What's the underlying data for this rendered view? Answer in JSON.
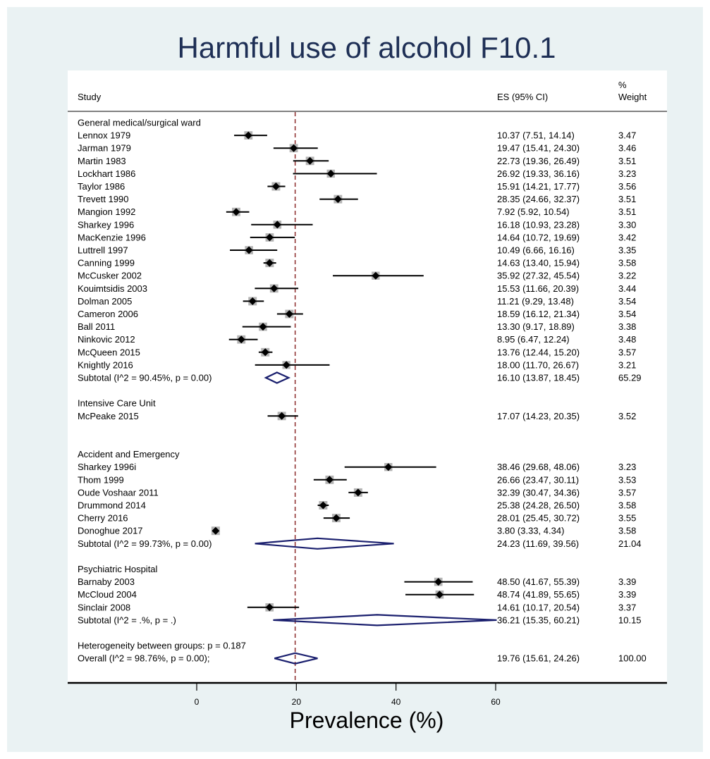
{
  "chart_data": {
    "type": "forest",
    "title": "Harmful use of alcohol F10.1",
    "xlabel": "Prevalence (%)",
    "xticks": [
      0,
      20,
      40,
      60
    ],
    "xlim": [
      0,
      60
    ],
    "reference_line": 19.76,
    "headers": {
      "study": "Study",
      "es": "ES (95% CI)",
      "weight_line1": "%",
      "weight_line2": "Weight"
    },
    "rows": [
      {
        "kind": "group",
        "label": "General medical/surgical ward"
      },
      {
        "kind": "study",
        "label": "Lennox 1979",
        "es": 10.37,
        "lo": 7.51,
        "hi": 14.14,
        "es_text": "10.37 (7.51, 14.14)",
        "weight": "3.47"
      },
      {
        "kind": "study",
        "label": "Jarman 1979",
        "es": 19.47,
        "lo": 15.41,
        "hi": 24.3,
        "es_text": "19.47 (15.41, 24.30)",
        "weight": "3.46"
      },
      {
        "kind": "study",
        "label": "Martin 1983",
        "es": 22.73,
        "lo": 19.36,
        "hi": 26.49,
        "es_text": "22.73 (19.36, 26.49)",
        "weight": "3.51"
      },
      {
        "kind": "study",
        "label": "Lockhart 1986",
        "es": 26.92,
        "lo": 19.33,
        "hi": 36.16,
        "es_text": "26.92 (19.33, 36.16)",
        "weight": "3.23"
      },
      {
        "kind": "study",
        "label": "Taylor 1986",
        "es": 15.91,
        "lo": 14.21,
        "hi": 17.77,
        "es_text": "15.91 (14.21, 17.77)",
        "weight": "3.56"
      },
      {
        "kind": "study",
        "label": "Trevett 1990",
        "es": 28.35,
        "lo": 24.66,
        "hi": 32.37,
        "es_text": "28.35 (24.66, 32.37)",
        "weight": "3.51"
      },
      {
        "kind": "study",
        "label": "Mangion 1992",
        "es": 7.92,
        "lo": 5.92,
        "hi": 10.54,
        "es_text": "7.92 (5.92, 10.54)",
        "weight": "3.51"
      },
      {
        "kind": "study",
        "label": "Sharkey 1996",
        "es": 16.18,
        "lo": 10.93,
        "hi": 23.28,
        "es_text": "16.18 (10.93, 23.28)",
        "weight": "3.30"
      },
      {
        "kind": "study",
        "label": "MacKenzie 1996",
        "es": 14.64,
        "lo": 10.72,
        "hi": 19.69,
        "es_text": "14.64 (10.72, 19.69)",
        "weight": "3.42"
      },
      {
        "kind": "study",
        "label": "Luttrell 1997",
        "es": 10.49,
        "lo": 6.66,
        "hi": 16.16,
        "es_text": "10.49 (6.66, 16.16)",
        "weight": "3.35"
      },
      {
        "kind": "study",
        "label": "Canning 1999",
        "es": 14.63,
        "lo": 13.4,
        "hi": 15.94,
        "es_text": "14.63 (13.40, 15.94)",
        "weight": "3.58"
      },
      {
        "kind": "study",
        "label": "McCusker 2002",
        "es": 35.92,
        "lo": 27.32,
        "hi": 45.54,
        "es_text": "35.92 (27.32, 45.54)",
        "weight": "3.22"
      },
      {
        "kind": "study",
        "label": "Kouimtsidis 2003",
        "es": 15.53,
        "lo": 11.66,
        "hi": 20.39,
        "es_text": "15.53 (11.66, 20.39)",
        "weight": "3.44"
      },
      {
        "kind": "study",
        "label": "Dolman 2005",
        "es": 11.21,
        "lo": 9.29,
        "hi": 13.48,
        "es_text": "11.21 (9.29, 13.48)",
        "weight": "3.54"
      },
      {
        "kind": "study",
        "label": "Cameron 2006",
        "es": 18.59,
        "lo": 16.12,
        "hi": 21.34,
        "es_text": "18.59 (16.12, 21.34)",
        "weight": "3.54"
      },
      {
        "kind": "study",
        "label": "Ball 2011",
        "es": 13.3,
        "lo": 9.17,
        "hi": 18.89,
        "es_text": "13.30 (9.17, 18.89)",
        "weight": "3.38"
      },
      {
        "kind": "study",
        "label": "Ninkovic 2012",
        "es": 8.95,
        "lo": 6.47,
        "hi": 12.24,
        "es_text": "8.95 (6.47, 12.24)",
        "weight": "3.48"
      },
      {
        "kind": "study",
        "label": "McQueen 2015",
        "es": 13.76,
        "lo": 12.44,
        "hi": 15.2,
        "es_text": "13.76 (12.44, 15.20)",
        "weight": "3.57"
      },
      {
        "kind": "study",
        "label": "Knightly 2016",
        "es": 18.0,
        "lo": 11.7,
        "hi": 26.67,
        "es_text": "18.00 (11.70, 26.67)",
        "weight": "3.21"
      },
      {
        "kind": "subtotal",
        "label": "Subtotal  (I^2 = 90.45%, p = 0.00)",
        "es": 16.1,
        "lo": 13.87,
        "hi": 18.45,
        "es_text": "16.10 (13.87, 18.45)",
        "weight": "65.29"
      },
      {
        "kind": "blank"
      },
      {
        "kind": "group",
        "label": "Intensive Care Unit"
      },
      {
        "kind": "study",
        "label": "McPeake 2015",
        "es": 17.07,
        "lo": 14.23,
        "hi": 20.35,
        "es_text": "17.07 (14.23, 20.35)",
        "weight": "3.52"
      },
      {
        "kind": "blank"
      },
      {
        "kind": "blank"
      },
      {
        "kind": "group",
        "label": "Accident and Emergency"
      },
      {
        "kind": "study",
        "label": "Sharkey 1996i",
        "es": 38.46,
        "lo": 29.68,
        "hi": 48.06,
        "es_text": "38.46 (29.68, 48.06)",
        "weight": "3.23"
      },
      {
        "kind": "study",
        "label": "Thom 1999",
        "es": 26.66,
        "lo": 23.47,
        "hi": 30.11,
        "es_text": "26.66 (23.47, 30.11)",
        "weight": "3.53"
      },
      {
        "kind": "study",
        "label": "Oude Voshaar 2011",
        "es": 32.39,
        "lo": 30.47,
        "hi": 34.36,
        "es_text": "32.39 (30.47, 34.36)",
        "weight": "3.57"
      },
      {
        "kind": "study",
        "label": "Drummond 2014",
        "es": 25.38,
        "lo": 24.28,
        "hi": 26.5,
        "es_text": "25.38 (24.28, 26.50)",
        "weight": "3.58"
      },
      {
        "kind": "study",
        "label": "Cherry 2016",
        "es": 28.01,
        "lo": 25.45,
        "hi": 30.72,
        "es_text": "28.01 (25.45, 30.72)",
        "weight": "3.55"
      },
      {
        "kind": "study",
        "label": "Donoghue 2017",
        "es": 3.8,
        "lo": 3.33,
        "hi": 4.34,
        "es_text": "3.80 (3.33, 4.34)",
        "weight": "3.58"
      },
      {
        "kind": "subtotal",
        "label": "Subtotal  (I^2 = 99.73%, p = 0.00)",
        "es": 24.23,
        "lo": 11.69,
        "hi": 39.56,
        "es_text": "24.23 (11.69, 39.56)",
        "weight": "21.04"
      },
      {
        "kind": "blank"
      },
      {
        "kind": "group",
        "label": "Psychiatric Hospital"
      },
      {
        "kind": "study",
        "label": "Barnaby 2003",
        "es": 48.5,
        "lo": 41.67,
        "hi": 55.39,
        "es_text": "48.50 (41.67, 55.39)",
        "weight": "3.39"
      },
      {
        "kind": "study",
        "label": "McCloud 2004",
        "es": 48.74,
        "lo": 41.89,
        "hi": 55.65,
        "es_text": "48.74 (41.89, 55.65)",
        "weight": "3.39"
      },
      {
        "kind": "study",
        "label": "Sinclair 2008",
        "es": 14.61,
        "lo": 10.17,
        "hi": 20.54,
        "es_text": "14.61 (10.17, 20.54)",
        "weight": "3.37"
      },
      {
        "kind": "subtotal",
        "label": "Subtotal  (I^2 = .%, p = .)",
        "es": 36.21,
        "lo": 15.35,
        "hi": 60.21,
        "es_text": "36.21 (15.35, 60.21)",
        "weight": "10.15"
      },
      {
        "kind": "blank"
      },
      {
        "kind": "group",
        "label": "Heterogeneity between groups: p = 0.187"
      },
      {
        "kind": "overall",
        "label": "Overall  (I^2 = 98.76%, p = 0.00);",
        "es": 19.76,
        "lo": 15.61,
        "hi": 24.26,
        "es_text": "19.76 (15.61, 24.26)",
        "weight": "100.00"
      }
    ]
  },
  "colors": {
    "background": "#eaf2f3",
    "panel": "#ffffff",
    "title": "#1e2f55",
    "diamond": "#1a1f6e",
    "weight_box": "#b4b4b4",
    "reference_line": "#8b2a2a"
  }
}
